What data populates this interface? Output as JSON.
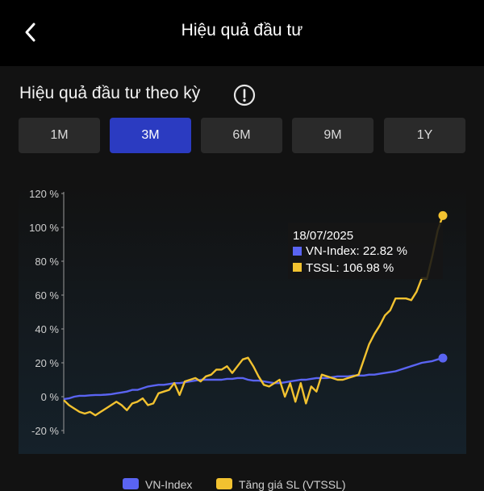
{
  "header": {
    "title": "Hiệu quả đầu tư",
    "back_icon": "chevron-left-icon"
  },
  "section": {
    "title": "Hiệu quả đầu tư theo kỳ",
    "info_icon": "info-icon"
  },
  "periods": [
    {
      "label": "1M",
      "active": false
    },
    {
      "label": "3M",
      "active": true
    },
    {
      "label": "6M",
      "active": false
    },
    {
      "label": "9M",
      "active": false
    },
    {
      "label": "1Y",
      "active": false
    }
  ],
  "colors": {
    "accent": "#2b3bc1",
    "vnindex": "#5a64f2",
    "tssl": "#f2c230"
  },
  "chart_data": {
    "type": "line",
    "yticks": [
      "120 %",
      "100 %",
      "80 %",
      "60 %",
      "40 %",
      "20 %",
      "0 %",
      "-20 %"
    ],
    "ylim": [
      -20,
      120
    ],
    "tooltip": {
      "date": "18/07/2025",
      "rows": [
        "VN-Index: 22.82 %",
        "TSSL: 106.98 %"
      ]
    },
    "series": [
      {
        "name": "VN-Index",
        "color": "#5a64f2",
        "values": [
          -1.5,
          -1,
          0,
          0.5,
          0.5,
          0.8,
          1,
          1,
          1.2,
          1.5,
          2,
          2.5,
          3,
          4,
          4,
          5,
          6,
          6.5,
          7,
          7,
          7.5,
          8,
          8,
          8.5,
          9,
          9.5,
          10,
          10,
          10,
          10,
          10,
          10.5,
          10.5,
          11,
          11,
          10,
          9.5,
          9.5,
          9,
          8.5,
          8,
          8,
          8.5,
          9,
          9.5,
          10,
          10,
          10.5,
          11,
          11,
          11,
          11.5,
          12,
          12,
          12,
          12.5,
          12.5,
          12.5,
          13,
          13,
          13.5,
          14,
          14.5,
          15,
          16,
          17,
          18,
          19,
          20,
          20.5,
          21,
          22,
          22.82
        ]
      },
      {
        "name": "TSSL",
        "color": "#f2c230",
        "values": [
          -2,
          -5,
          -7,
          -9,
          -10,
          -9,
          -11,
          -9,
          -7,
          -5,
          -3,
          -5,
          -8,
          -4,
          -3,
          -1,
          -5,
          -4,
          2,
          3,
          4,
          8,
          1,
          9,
          10,
          11,
          9,
          12,
          13,
          16,
          16,
          18,
          14,
          18,
          22,
          23,
          18,
          12,
          7,
          6,
          8,
          10,
          0,
          8,
          -3,
          8,
          -4,
          6,
          3,
          13,
          12,
          11,
          10,
          10,
          11,
          12,
          13,
          22,
          31,
          37,
          42,
          48,
          51,
          58,
          58,
          58,
          57,
          62,
          70,
          70,
          83,
          98,
          106.98
        ]
      }
    ]
  },
  "legend": [
    {
      "label": "VN-Index"
    },
    {
      "label": "Tăng giá SL (VTSSL)"
    }
  ]
}
